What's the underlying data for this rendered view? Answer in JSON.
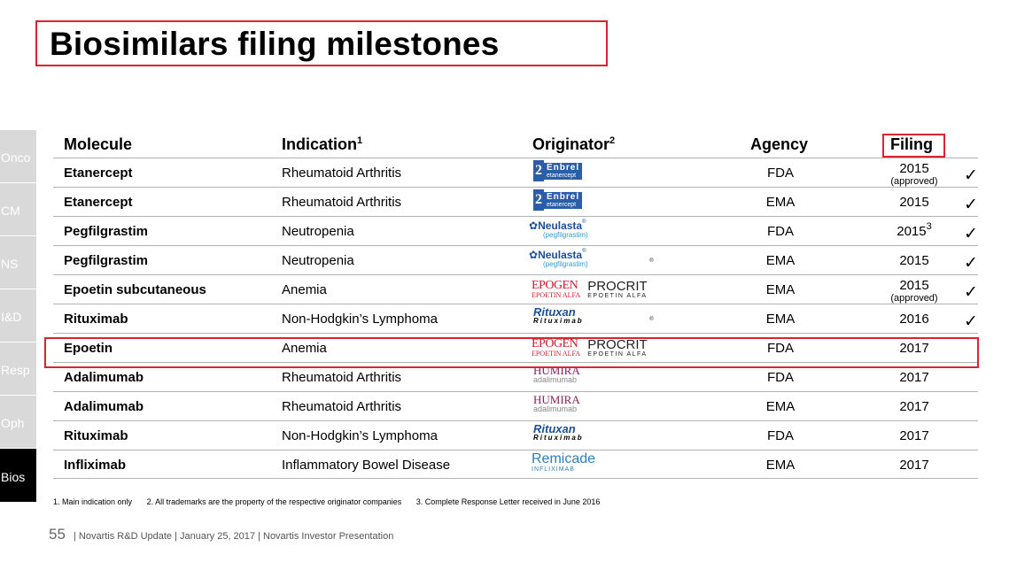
{
  "title": "Biosimilars filing milestones",
  "sidenav": [
    "Onco",
    "CM",
    "NS",
    "I&D",
    "Resp",
    "Oph",
    "Bios"
  ],
  "headers": {
    "molecule": "Molecule",
    "indication": "Indication",
    "indication_sup": "1",
    "originator": "Originator",
    "originator_sup": "2",
    "agency": "Agency",
    "filing": "Filing"
  },
  "rows": [
    {
      "molecule": "Etanercept",
      "indication": "Rheumatoid Arthritis",
      "brand": "Enbrel",
      "brand_sub": "etanercept",
      "agency": "FDA",
      "filing": "2015",
      "filing_note": "(approved)",
      "check": "✓"
    },
    {
      "molecule": "Etanercept",
      "indication": "Rheumatoid Arthritis",
      "brand": "Enbrel",
      "brand_sub": "etanercept",
      "agency": "EMA",
      "filing": "2015",
      "check": "✓"
    },
    {
      "molecule": "Pegfilgrastim",
      "indication": "Neutropenia",
      "brand": "Neulasta",
      "brand_sub": "(pegfilgrastim)",
      "agency": "FDA",
      "filing": "2015",
      "filing_sup": "3",
      "check": "✓"
    },
    {
      "molecule": "Pegfilgrastim",
      "indication": "Neutropenia",
      "brand": "Neulasta",
      "brand_sub": "(pegfilgrastim)",
      "agency": "EMA",
      "filing": "2015",
      "check": "✓"
    },
    {
      "molecule": "Epoetin subcutaneous",
      "indication": "Anemia",
      "brand": "EPOGEN",
      "brand_sub": "EPOETIN ALFA",
      "brand2": "PROCRIT",
      "brand2_sub": "EPOETIN ALFA",
      "agency": "EMA",
      "filing": "2015",
      "filing_note": "(approved)",
      "check": "✓"
    },
    {
      "molecule": "Rituximab",
      "indication": "Non-Hodgkin’s Lymphoma",
      "brand": "Rituxan",
      "brand_sub": "Rituximab",
      "agency": "EMA",
      "filing": "2016",
      "check": "✓"
    },
    {
      "molecule": "Epoetin",
      "indication": "Anemia",
      "brand": "EPOGEN",
      "brand_sub": "EPOETIN ALFA",
      "brand2": "PROCRIT",
      "brand2_sub": "EPOETIN ALFA",
      "agency": "FDA",
      "filing": "2017"
    },
    {
      "molecule": "Adalimumab",
      "indication": "Rheumatoid Arthritis",
      "brand": "HUMIRA",
      "brand_sub": "adalimumab",
      "agency": "FDA",
      "filing": "2017"
    },
    {
      "molecule": "Adalimumab",
      "indication": "Rheumatoid Arthritis",
      "brand": "HUMIRA",
      "brand_sub": "adalimumab",
      "agency": "EMA",
      "filing": "2017"
    },
    {
      "molecule": "Rituximab",
      "indication": "Non-Hodgkin’s Lymphoma",
      "brand": "Rituxan",
      "brand_sub": "Rituximab",
      "agency": "FDA",
      "filing": "2017"
    },
    {
      "molecule": "Infliximab",
      "indication": "Inflammatory Bowel Disease",
      "brand": "Remicade",
      "brand_sub": "INFLIXIMAB",
      "agency": "EMA",
      "filing": "2017"
    }
  ],
  "footnotes": [
    "1. Main indication only",
    "2. All trademarks are the property of the respective originator companies",
    "3. Complete Response Letter received in June 2016"
  ],
  "footer": {
    "page": "55",
    "text": "| Novartis R&D Update | January 25, 2017 | Novartis Investor Presentation"
  },
  "colors": {
    "accent_red": "#d9252f",
    "nav_inactive": "#d9d9d9",
    "nav_active": "#000000"
  }
}
